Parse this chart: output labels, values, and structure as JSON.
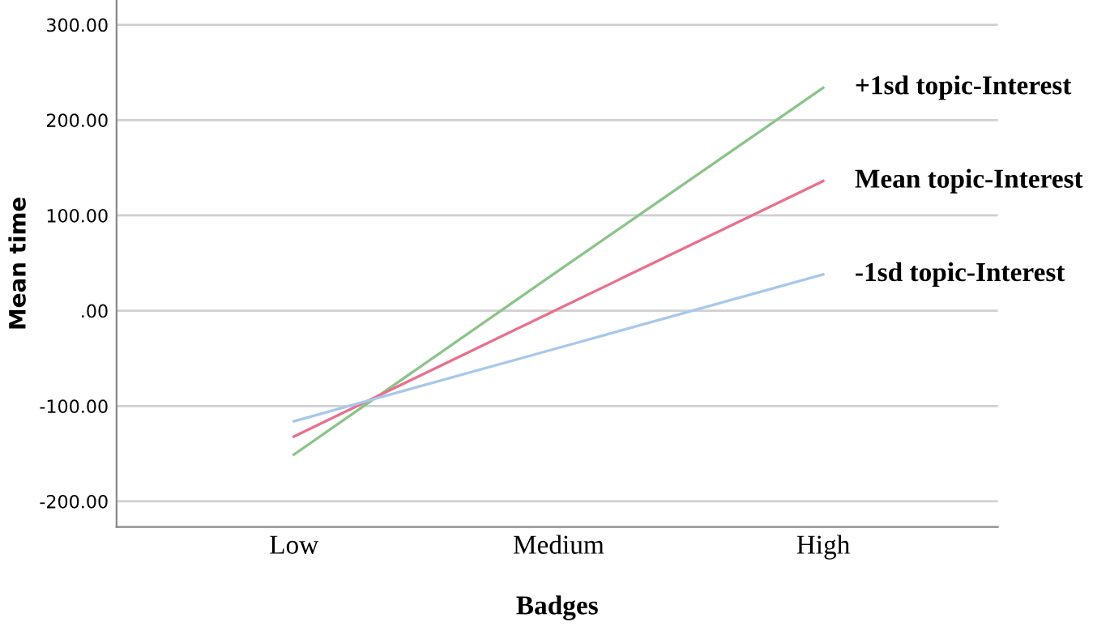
{
  "chart_data": {
    "type": "line",
    "xlabel": "Badges",
    "ylabel": "Mean time",
    "categories": [
      "Low",
      "Medium",
      "High"
    ],
    "series": [
      {
        "name": "+1sd topic-Interest",
        "color": "#8bc48a",
        "values": [
          -151,
          42,
          234
        ]
      },
      {
        "name": "Mean topic-Interest",
        "color": "#e8718d",
        "values": [
          -132,
          2,
          136
        ]
      },
      {
        "name": "-1sd topic-Interest",
        "color": "#a8c8ec",
        "values": [
          -116,
          -39,
          38
        ]
      }
    ],
    "ylim": [
      -227,
      326
    ],
    "yticks": [
      {
        "value": -200,
        "label": "-200.00"
      },
      {
        "value": -100,
        "label": "-100.00"
      },
      {
        "value": 0,
        "label": ".00"
      },
      {
        "value": 100,
        "label": "100.00"
      },
      {
        "value": 200,
        "label": "200.00"
      },
      {
        "value": 300,
        "label": "300.00"
      }
    ],
    "grid": "y",
    "marker": "none",
    "line_style": "solid",
    "legend": false
  }
}
